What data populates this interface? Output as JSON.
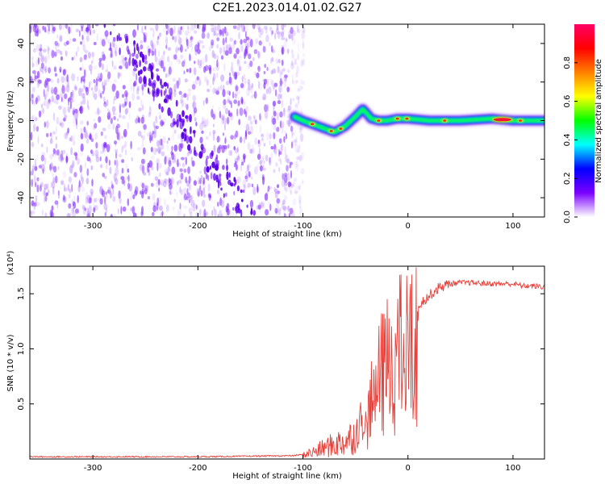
{
  "figure_title": "C2E1.2023.014.01.02.G27",
  "chart_data": [
    {
      "type": "heatmap",
      "xlabel": "Height of straight line (km)",
      "ylabel": "Frequency (Hz)",
      "xlim": [
        -360,
        130
      ],
      "ylim": [
        -50,
        50
      ],
      "xticks": [
        -300,
        -200,
        -100,
        0,
        100
      ],
      "yticks": [
        -40,
        -20,
        0,
        20,
        40
      ],
      "xtick_labels": [
        "-300",
        "-200",
        "-100",
        "0",
        "100"
      ],
      "ytick_labels": [
        "-40",
        "-20",
        "0",
        "20",
        "40"
      ],
      "colorbar": {
        "label": "Normalized spectral amplitude",
        "range": [
          0,
          1
        ],
        "ticks": [
          0.0,
          0.2,
          0.4,
          0.6,
          0.8
        ],
        "tick_labels": [
          "0.0",
          "0.2",
          "0.4",
          "0.6",
          "0.8"
        ],
        "colormap": [
          "#ffffff",
          "#7b00ff",
          "#0000ff",
          "#00ffff",
          "#00ff00",
          "#ffff00",
          "#ff8000",
          "#ff0000",
          "#ff0066"
        ]
      },
      "noise_region_x": [
        -360,
        -105
      ],
      "noise_diagonal_band": [
        [
          -255,
          30
        ],
        [
          -150,
          -50
        ]
      ],
      "signal_ridge": {
        "x": [
          -108,
          -100,
          -90,
          -80,
          -70,
          -60,
          -50,
          -43,
          -35,
          -28,
          -20,
          -10,
          0,
          20,
          50,
          80,
          100,
          130
        ],
        "frequency": [
          2,
          0,
          -2,
          -4,
          -6,
          -3,
          2,
          6,
          1,
          0,
          0,
          1,
          1,
          0,
          0,
          1,
          0,
          0
        ],
        "peak_amplitude_x": [
          80,
          100
        ]
      },
      "grid": false
    },
    {
      "type": "line",
      "xlabel": "Height of straight line (km)",
      "ylabel": "SNR (10 * v/v)",
      "y_multiplier_label": "(x10⁴)",
      "xlim": [
        -360,
        130
      ],
      "ylim": [
        0,
        1.75
      ],
      "xticks": [
        -300,
        -200,
        -100,
        0,
        100
      ],
      "yticks": [
        0.5,
        1.0,
        1.5
      ],
      "xtick_labels": [
        "-300",
        "-200",
        "-100",
        "0",
        "100"
      ],
      "ytick_labels": [
        "0.5",
        "1.0",
        "1.5"
      ],
      "line_color": "#e8403a",
      "series": [
        {
          "x": [
            -360,
            -300,
            -200,
            -110,
            -100,
            -90,
            -80,
            -70,
            -60,
            -50,
            -45,
            -40,
            -35,
            -30,
            -25,
            -20,
            -15,
            -10,
            -5,
            0,
            10,
            20,
            30,
            40,
            50,
            60,
            80,
            100,
            110,
            120,
            130
          ],
          "values": [
            0.02,
            0.02,
            0.02,
            0.03,
            0.04,
            0.06,
            0.1,
            0.13,
            0.16,
            0.22,
            0.35,
            0.4,
            0.65,
            0.85,
            1.0,
            1.12,
            1.2,
            1.28,
            1.25,
            1.3,
            1.4,
            1.48,
            1.56,
            1.59,
            1.6,
            1.6,
            1.59,
            1.59,
            1.57,
            1.57,
            1.56
          ]
        }
      ],
      "grid": false
    }
  ]
}
